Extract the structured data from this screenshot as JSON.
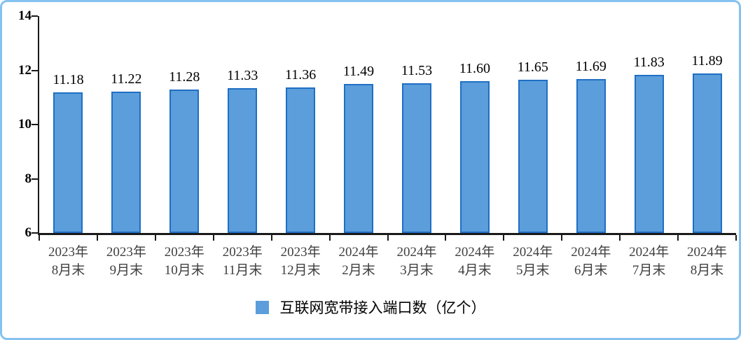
{
  "chart_data": {
    "type": "bar",
    "title": "",
    "xlabel": "",
    "ylabel": "",
    "categories": [
      "2023年\n8月末",
      "2023年\n9月末",
      "2023年\n10月末",
      "2023年\n11月末",
      "2023年\n12月末",
      "2024年\n2月末",
      "2024年\n3月末",
      "2024年\n4月末",
      "2024年\n5月末",
      "2024年\n6月末",
      "2024年\n7月末",
      "2024年\n8月末"
    ],
    "values": [
      11.18,
      11.22,
      11.28,
      11.33,
      11.36,
      11.49,
      11.53,
      11.6,
      11.65,
      11.69,
      11.83,
      11.89
    ],
    "value_labels": [
      "11.18",
      "11.22",
      "11.28",
      "11.33",
      "11.36",
      "11.49",
      "11.53",
      "11.60",
      "11.65",
      "11.69",
      "11.83",
      "11.89"
    ],
    "ylim": [
      6,
      14
    ],
    "yticks": [
      6,
      8,
      10,
      12,
      14
    ],
    "grid": false,
    "legend_position": "bottom",
    "legend": "互联网宽带接入端口数（亿个）",
    "colors": {
      "bar_fill": "#5B9EDB",
      "bar_border": "#1F6FC4",
      "axis": "#1a1a1a",
      "value_label": "#000000",
      "category_label": "#3F3F3F",
      "frame_border": "#85C2EF",
      "legend_swatch": "#5B9EDB"
    }
  }
}
